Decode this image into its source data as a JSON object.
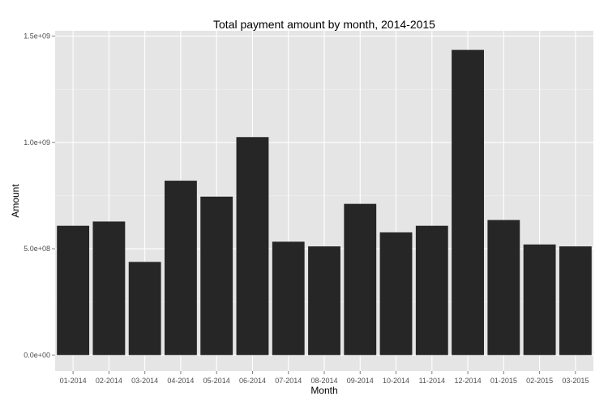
{
  "chart_data": {
    "type": "bar",
    "title": "Total payment amount by month, 2014-2015",
    "xlabel": "Month",
    "ylabel": "Amount",
    "categories": [
      "01-2014",
      "02-2014",
      "03-2014",
      "04-2014",
      "05-2014",
      "06-2014",
      "07-2014",
      "08-2014",
      "09-2014",
      "10-2014",
      "11-2014",
      "12-2014",
      "01-2015",
      "02-2015",
      "03-2015"
    ],
    "values": [
      608000000,
      628000000,
      438000000,
      820000000,
      745000000,
      1025000000,
      533000000,
      511000000,
      711000000,
      577000000,
      608000000,
      1435000000,
      635000000,
      520000000,
      511000000
    ],
    "ylim": [
      -75000000,
      1525000000
    ],
    "yticks": [
      0,
      500000000,
      1000000000,
      1500000000
    ],
    "ytick_labels": [
      "0.0e+00",
      "5.0e+08",
      "1.0e+09",
      "1.5e+09"
    ],
    "grid": true,
    "legend": "none",
    "colors": {
      "bar": "#262626",
      "panel": "#e5e5e5",
      "grid_major": "#ffffff",
      "grid_minor": "#f2f2f2",
      "tick_text": "#4d4d4d",
      "tick_line": "#7f7f7f"
    }
  }
}
